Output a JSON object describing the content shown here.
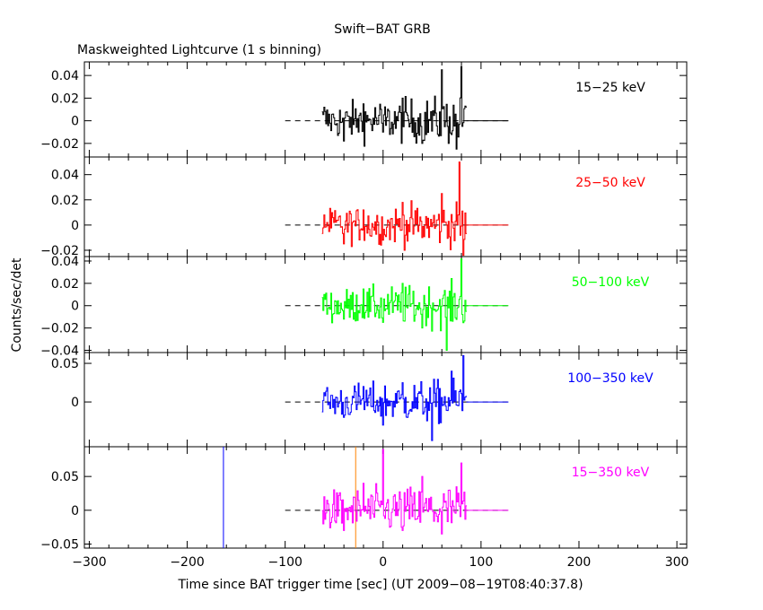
{
  "chart_data": {
    "type": "line",
    "title": "Swift−BAT GRB",
    "subtitle": "Maskweighted Lightcurve (1 s binning)",
    "xlabel": "Time since BAT trigger time [sec] (UT 2009−08−19T08:40:37.8)",
    "ylabel": "Counts/sec/det",
    "xlim": [
      -305,
      310
    ],
    "x_ticks": [
      -300,
      -200,
      -100,
      0,
      100,
      200,
      300
    ],
    "x_tick_labels": [
      "−300",
      "−200",
      "−100",
      "0",
      "100",
      "200",
      "300"
    ],
    "dashed_zero_line_range": [
      -100,
      130
    ],
    "data_range": [
      -62,
      85
    ],
    "extended_flat_range": [
      85,
      128
    ],
    "grid": false,
    "legend": "band labels at top-right of each panel",
    "panels": [
      {
        "band": "15−25 keV",
        "color": "#000000",
        "ylim": [
          -0.032,
          0.052
        ],
        "y_ticks": [
          -0.02,
          0,
          0.02,
          0.04
        ],
        "y_tick_labels": [
          "−0.02",
          "0",
          "0.02",
          "0.04"
        ],
        "noise_sigma": 0.011,
        "series_samples": [
          {
            "x": -60,
            "y": 0.012
          },
          {
            "x": -40,
            "y": -0.018
          },
          {
            "x": -20,
            "y": 0.015
          },
          {
            "x": 0,
            "y": -0.01
          },
          {
            "x": 20,
            "y": 0.02
          },
          {
            "x": 40,
            "y": -0.02
          },
          {
            "x": 60,
            "y": 0.045
          },
          {
            "x": 75,
            "y": -0.025
          },
          {
            "x": 80,
            "y": 0.048
          }
        ]
      },
      {
        "band": "25−50 keV",
        "color": "#ff0000",
        "ylim": [
          -0.025,
          0.054
        ],
        "y_ticks": [
          -0.02,
          0,
          0.02,
          0.04
        ],
        "y_tick_labels": [
          "−0.02",
          "0",
          "0.02",
          "0.04"
        ],
        "noise_sigma": 0.009,
        "series_samples": [
          {
            "x": -60,
            "y": 0.008
          },
          {
            "x": -40,
            "y": -0.015
          },
          {
            "x": -20,
            "y": 0.012
          },
          {
            "x": 0,
            "y": -0.012
          },
          {
            "x": 20,
            "y": 0.018
          },
          {
            "x": 40,
            "y": -0.01
          },
          {
            "x": 60,
            "y": 0.025
          },
          {
            "x": 78,
            "y": 0.05
          },
          {
            "x": 82,
            "y": -0.024
          }
        ]
      },
      {
        "band": "50−100 keV",
        "color": "#00ff00",
        "ylim": [
          -0.042,
          0.044
        ],
        "y_ticks": [
          -0.04,
          -0.02,
          0,
          0.02,
          0.04
        ],
        "y_tick_labels": [
          "−0.04",
          "−0.02",
          "0",
          "0.02",
          "0.04"
        ],
        "noise_sigma": 0.01,
        "series_samples": [
          {
            "x": -60,
            "y": 0.01
          },
          {
            "x": -40,
            "y": -0.012
          },
          {
            "x": -20,
            "y": 0.015
          },
          {
            "x": 0,
            "y": -0.015
          },
          {
            "x": 20,
            "y": 0.02
          },
          {
            "x": 40,
            "y": -0.02
          },
          {
            "x": 65,
            "y": -0.04
          },
          {
            "x": 80,
            "y": 0.042
          }
        ]
      },
      {
        "band": "100−350 keV",
        "color": "#0000ff",
        "ylim": [
          -0.058,
          0.064
        ],
        "y_ticks": [
          0,
          0.05
        ],
        "y_tick_labels": [
          "0",
          "0.05"
        ],
        "noise_sigma": 0.015,
        "series_samples": [
          {
            "x": -60,
            "y": 0.012
          },
          {
            "x": -40,
            "y": -0.02
          },
          {
            "x": -20,
            "y": 0.02
          },
          {
            "x": 0,
            "y": -0.03
          },
          {
            "x": 20,
            "y": 0.025
          },
          {
            "x": 50,
            "y": -0.05
          },
          {
            "x": 70,
            "y": 0.04
          },
          {
            "x": 82,
            "y": 0.06
          }
        ]
      },
      {
        "band": "15−350 keV",
        "color": "#ff00ff",
        "ylim": [
          -0.056,
          0.094
        ],
        "y_ticks": [
          -0.05,
          0,
          0.05
        ],
        "y_tick_labels": [
          "−0.05",
          "0",
          "0.05"
        ],
        "noise_sigma": 0.02,
        "series_samples": [
          {
            "x": -60,
            "y": 0.02
          },
          {
            "x": -40,
            "y": -0.03
          },
          {
            "x": -20,
            "y": 0.04
          },
          {
            "x": 0,
            "y": 0.09
          },
          {
            "x": 20,
            "y": -0.03
          },
          {
            "x": 40,
            "y": 0.05
          },
          {
            "x": 60,
            "y": -0.035
          },
          {
            "x": 80,
            "y": 0.07
          }
        ],
        "vertical_markers": [
          {
            "x": -163,
            "color": "#0000ff"
          },
          {
            "x": -28,
            "color": "#ff8000"
          }
        ]
      }
    ]
  }
}
